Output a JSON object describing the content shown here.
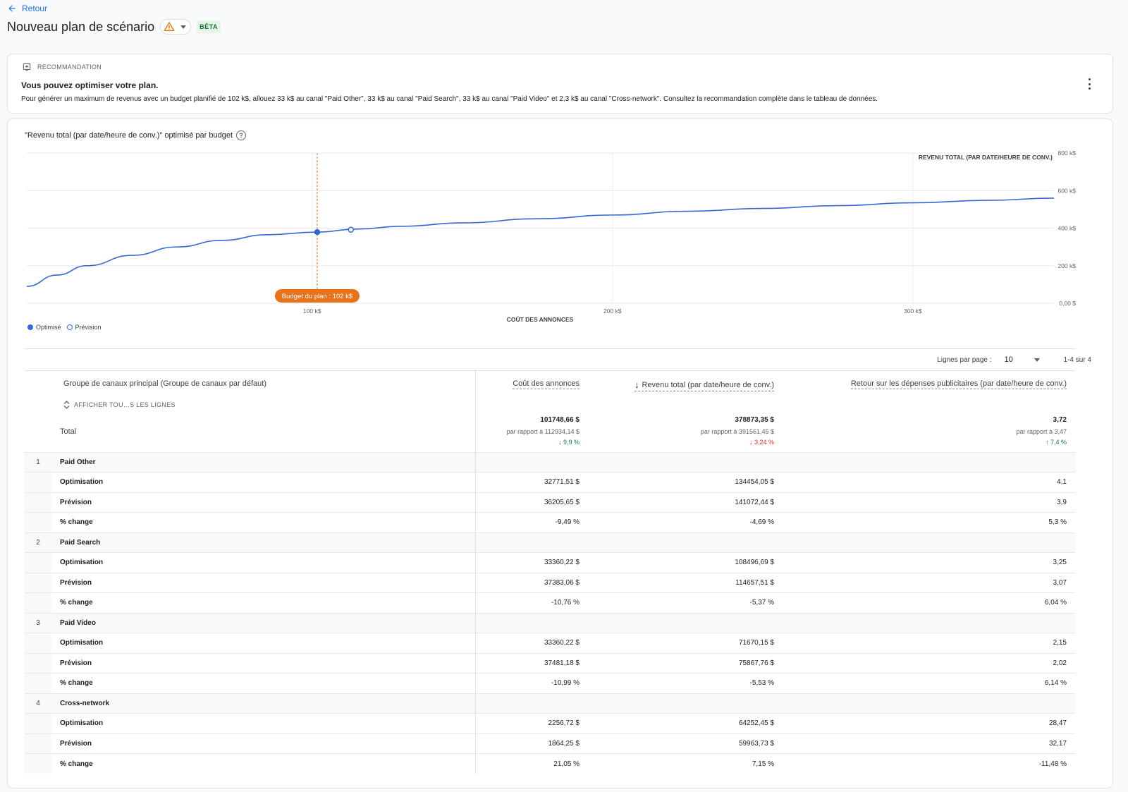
{
  "header": {
    "back_label": "Retour",
    "title": "Nouveau plan de scénario",
    "warning_icon": "warning-icon",
    "beta_label": "BÊTA"
  },
  "recommendation": {
    "heading": "RECOMMANDATION",
    "title": "Vous pouvez optimiser votre plan.",
    "text": "Pour générer un maximum de revenus avec un budget planifié de 102 k$, allouez 33 k$ au canal \"Paid Other\", 33 k$ au canal \"Paid Search\", 33 k$ au canal \"Paid Video\" et 2,3 k$ au canal \"Cross-network\". Consultez la recommandation complète dans le tableau de données."
  },
  "chart_title": "\"Revenu total (par date/heure de conv.)\" optimisé par budget",
  "chart_data": {
    "type": "line",
    "title": "\"Revenu total (par date/heure de conv.)\" optimisé par budget",
    "xlabel": "COÛT DES ANNONCES",
    "ylabel": "REVENU TOTAL (PAR DATE/HEURE DE CONV.)",
    "xlim": [
      5,
      347
    ],
    "ylim": [
      0,
      800
    ],
    "x_ticks": [
      100,
      200,
      300
    ],
    "x_tick_labels": [
      "100 k$",
      "200 k$",
      "300 k$"
    ],
    "y_ticks": [
      0,
      200,
      400,
      600,
      800
    ],
    "y_tick_labels": [
      "0,00 $",
      "200 k$",
      "400 k$",
      "600 k$",
      "800 k$"
    ],
    "grid": true,
    "series": [
      {
        "name": "Optimisé",
        "x": [
          5,
          15,
          25,
          40,
          55,
          70,
          85,
          101.7,
          115,
          130,
          150,
          175,
          200,
          225,
          250,
          275,
          300,
          325,
          347
        ],
        "y": [
          90,
          150,
          200,
          255,
          300,
          335,
          365,
          379,
          395,
          410,
          428,
          450,
          470,
          490,
          505,
          520,
          535,
          548,
          560
        ]
      }
    ],
    "markers": [
      {
        "name": "Optimisé",
        "x": 101.7,
        "y": 379,
        "style": "filled"
      },
      {
        "name": "Prévision",
        "x": 112.9,
        "y": 391.6,
        "style": "hollow"
      }
    ],
    "annotation": {
      "x": 101.7,
      "label": "Budget du plan : 102 k$"
    },
    "legend": [
      "Optimisé",
      "Prévision"
    ],
    "legend_position": "bottom-left",
    "colors": {
      "line": "#3367d6",
      "budget": "#e8711a"
    }
  },
  "pager": {
    "rows_label": "Lignes par page :",
    "rows_value": "10",
    "range": "1-4 sur 4"
  },
  "table": {
    "group_col": "Groupe de canaux principal (Groupe de canaux par défaut)",
    "show_all": "AFFICHER TOU…S LES LIGNES",
    "total_label": "Total",
    "columns": [
      {
        "title": "Coût des annonces",
        "total": "101748,66 $",
        "compare": "par rapport à 112934,14 $",
        "delta": "9,9 %",
        "delta_dir": "down",
        "delta_color": "#188038"
      },
      {
        "title": "Revenu total (par date/heure de conv.)",
        "total": "378873,35 $",
        "compare": "par rapport à 391561,45 $",
        "delta": "3,24 %",
        "delta_dir": "down",
        "delta_color": "#d93025"
      },
      {
        "title": "Retour sur les dépenses publicitaires (par date/heure de conv.)",
        "total": "3,72",
        "compare": "par rapport à 3,47",
        "delta": "7,4 %",
        "delta_dir": "up",
        "delta_color": "#188038"
      }
    ],
    "groups": [
      {
        "index": "1",
        "name": "Paid Other",
        "rows": [
          {
            "label": "Optimisation",
            "values": [
              "32771,51 $",
              "134454,05 $",
              "4,1"
            ]
          },
          {
            "label": "Prévision",
            "values": [
              "36205,65 $",
              "141072,44 $",
              "3,9"
            ]
          },
          {
            "label": "% change",
            "values": [
              "-9,49 %",
              "-4,69 %",
              "5,3 %"
            ]
          }
        ]
      },
      {
        "index": "2",
        "name": "Paid Search",
        "rows": [
          {
            "label": "Optimisation",
            "values": [
              "33360,22 $",
              "108496,69 $",
              "3,25"
            ]
          },
          {
            "label": "Prévision",
            "values": [
              "37383,06 $",
              "114657,51 $",
              "3,07"
            ]
          },
          {
            "label": "% change",
            "values": [
              "-10,76 %",
              "-5,37 %",
              "6,04 %"
            ]
          }
        ]
      },
      {
        "index": "3",
        "name": "Paid Video",
        "rows": [
          {
            "label": "Optimisation",
            "values": [
              "33360,22 $",
              "71670,15 $",
              "2,15"
            ]
          },
          {
            "label": "Prévision",
            "values": [
              "37481,18 $",
              "75867,76 $",
              "2,02"
            ]
          },
          {
            "label": "% change",
            "values": [
              "-10,99 %",
              "-5,53 %",
              "6,14 %"
            ]
          }
        ]
      },
      {
        "index": "4",
        "name": "Cross-network",
        "rows": [
          {
            "label": "Optimisation",
            "values": [
              "2256,72 $",
              "64252,45 $",
              "28,47"
            ]
          },
          {
            "label": "Prévision",
            "values": [
              "1864,25 $",
              "59963,73 $",
              "32,17"
            ]
          },
          {
            "label": "% change",
            "values": [
              "21,05 %",
              "7,15 %",
              "-11,48 %"
            ]
          }
        ]
      }
    ]
  }
}
